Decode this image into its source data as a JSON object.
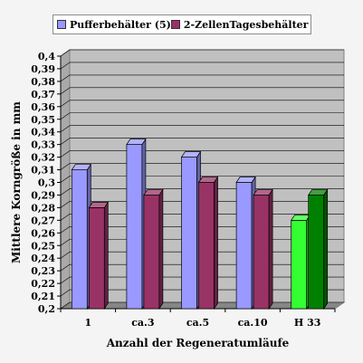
{
  "colors": {
    "series1": "#9999ff",
    "series2": "#993366",
    "highlight1": "#33ff33",
    "highlight2": "#008000",
    "plot_back": "#c0c0c0"
  },
  "chart_data": {
    "type": "bar",
    "title": "",
    "xlabel": "Anzahl der Regeneratumläufe",
    "ylabel": "Mittlere Korngröße in mm",
    "categories": [
      "1",
      "ca.3",
      "ca.5",
      "ca.10",
      "H 33"
    ],
    "ylim": [
      0.2,
      0.4
    ],
    "ytick_step": 0.01,
    "grid": true,
    "legend": "top",
    "series": [
      {
        "name": "Pufferbehälter (5)",
        "values": [
          0.31,
          0.33,
          0.32,
          0.3,
          0.27
        ]
      },
      {
        "name": "2-ZellenTagesbehälter",
        "values": [
          0.28,
          0.29,
          0.3,
          0.29,
          0.29
        ]
      }
    ],
    "highlight_category": "H 33"
  }
}
